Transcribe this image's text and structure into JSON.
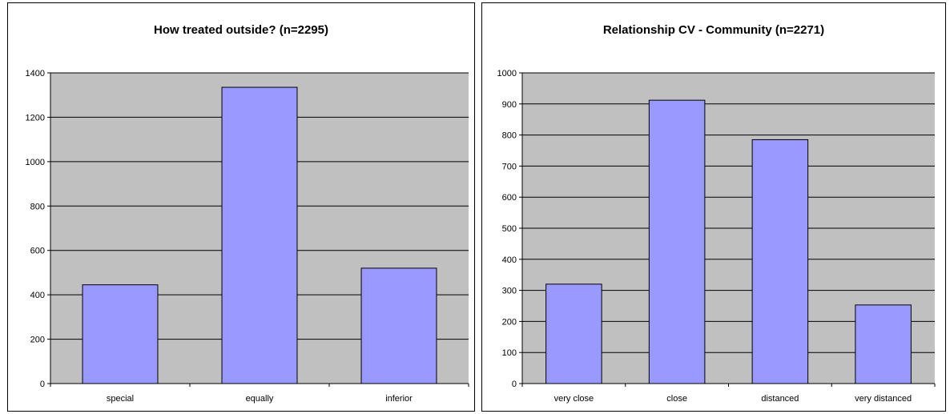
{
  "chart_data": [
    {
      "type": "bar",
      "title": "How treated outside? (n=2295)",
      "categories": [
        "special",
        "equally",
        "inferior"
      ],
      "values": [
        445,
        1335,
        520
      ],
      "ylim": [
        0,
        1400
      ],
      "yticks": [
        "0",
        "200",
        "400",
        "600",
        "800",
        "1000",
        "1200",
        "1400"
      ],
      "grid": true,
      "legend": "none",
      "colors": {
        "bar": "#9999ff",
        "plot_bg": "#c0c0c0",
        "grid": "#000000"
      }
    },
    {
      "type": "bar",
      "title": "Relationship CV - Community (n=2271)",
      "categories": [
        "very close",
        "close",
        "distanced",
        "very distanced"
      ],
      "values": [
        320,
        912,
        785,
        253
      ],
      "ylim": [
        0,
        1000
      ],
      "yticks": [
        "0",
        "100",
        "200",
        "300",
        "400",
        "500",
        "600",
        "700",
        "800",
        "900",
        "1000"
      ],
      "grid": true,
      "legend": "none",
      "colors": {
        "bar": "#9999ff",
        "plot_bg": "#c0c0c0",
        "grid": "#000000"
      }
    }
  ]
}
